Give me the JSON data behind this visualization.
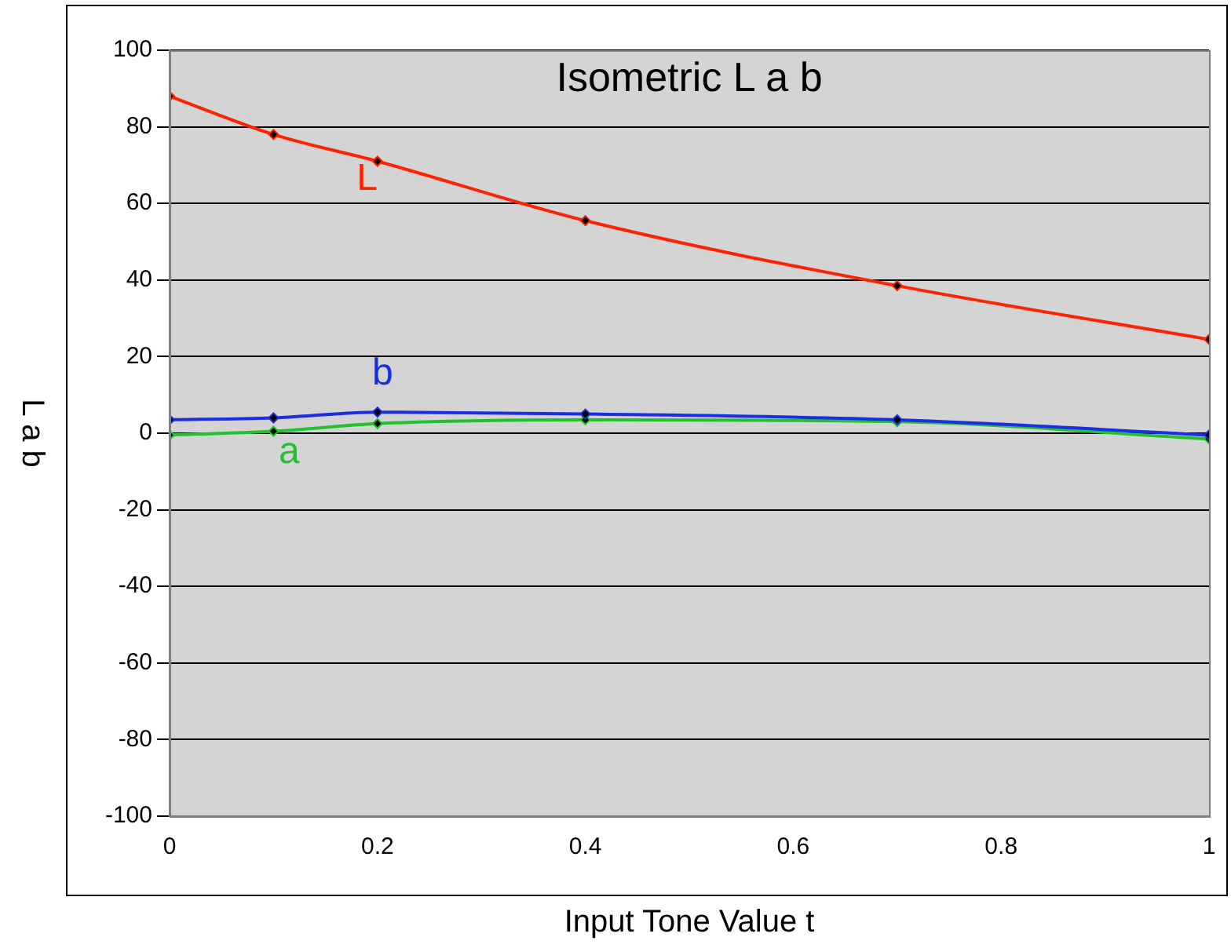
{
  "chart_data": {
    "type": "line",
    "title": "Isometric L a b",
    "xlabel": "Input Tone Value t",
    "ylabel": "L a b",
    "x": [
      0,
      0.1,
      0.2,
      0.4,
      0.7,
      1
    ],
    "series": [
      {
        "name": "L",
        "color": "#ff2200",
        "values": [
          88,
          78,
          71,
          55.5,
          38.5,
          24.5
        ]
      },
      {
        "name": "b",
        "color": "#1a2ee6",
        "values": [
          3.5,
          4,
          5.5,
          5,
          3.5,
          -0.5
        ]
      },
      {
        "name": "a",
        "color": "#22c22e",
        "values": [
          -0.5,
          0.5,
          2.5,
          3.5,
          3,
          -1.5
        ]
      }
    ],
    "xlim": [
      0,
      1
    ],
    "xticks": [
      0,
      0.2,
      0.4,
      0.6,
      0.8,
      1
    ],
    "ylim": [
      -100,
      100
    ],
    "yticks": [
      -100,
      -80,
      -60,
      -40,
      -20,
      0,
      20,
      40,
      60,
      80,
      100
    ],
    "grid": "y",
    "legend": false,
    "marker": "diamond",
    "line_style": "solid"
  }
}
